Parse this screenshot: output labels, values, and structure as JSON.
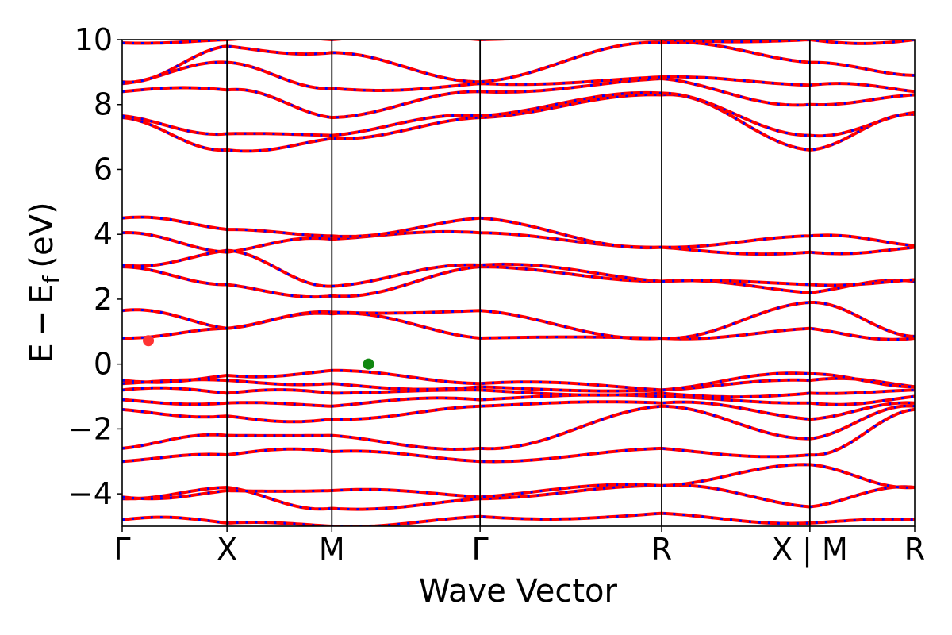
{
  "chart_data": {
    "type": "line",
    "title": "",
    "xlabel": "Wave Vector",
    "ylabel_parts": {
      "e": "E",
      "minus": "−",
      "ef": "E",
      "sub": "f",
      "unit": "(eV)"
    },
    "ylim": [
      -5,
      10
    ],
    "yticks": [
      10,
      8,
      6,
      4,
      2,
      0,
      -2,
      -4
    ],
    "ytick_labels": [
      "10",
      "8",
      "6",
      "4",
      "2",
      "0",
      "−2",
      "−4"
    ],
    "k_points": [
      {
        "label": "Γ",
        "x": 0.0
      },
      {
        "label": "X",
        "x": 0.5
      },
      {
        "label": "M",
        "x": 1.0
      },
      {
        "label": "Γ",
        "x": 1.707
      },
      {
        "label": "R",
        "x": 2.573
      },
      {
        "label": "X | M",
        "x": 3.28
      },
      {
        "label": "R",
        "x": 3.78
      }
    ],
    "xlim": [
      0,
      3.78
    ],
    "series_colors": {
      "spin_up": "#ff0000",
      "spin_down": "#0000ff"
    },
    "markers": [
      {
        "name": "cbm",
        "x": 0.125,
        "y": 0.72,
        "color": "#ff3333"
      },
      {
        "name": "vbm",
        "x": 1.175,
        "y": 0.0,
        "color": "#118811"
      }
    ],
    "bands": [
      {
        "x": [
          0,
          0.5,
          1.0,
          1.707,
          2.573,
          3.28,
          3.78
        ],
        "y": [
          -4.8,
          -4.9,
          -5.0,
          -4.7,
          -4.6,
          -4.9,
          -4.8
        ]
      },
      {
        "x": [
          0,
          0.5,
          1.0,
          1.707,
          2.573,
          3.28,
          3.78
        ],
        "y": [
          -4.15,
          -3.8,
          -4.45,
          -4.15,
          -3.75,
          -4.4,
          -3.8
        ]
      },
      {
        "x": [
          0,
          0.5,
          1.0,
          1.707,
          2.573,
          3.28,
          3.78
        ],
        "y": [
          -4.1,
          -3.9,
          -3.9,
          -4.1,
          -3.75,
          -3.1,
          -3.8
        ]
      },
      {
        "x": [
          0,
          0.5,
          1.0,
          1.707,
          2.573,
          3.28,
          3.78
        ],
        "y": [
          -3.0,
          -2.8,
          -2.7,
          -3.0,
          -2.6,
          -2.8,
          -1.4
        ]
      },
      {
        "x": [
          0,
          0.5,
          1.0,
          1.707,
          2.573,
          3.28,
          3.78
        ],
        "y": [
          -2.6,
          -2.2,
          -2.2,
          -2.6,
          -1.3,
          -2.3,
          -1.3
        ]
      },
      {
        "x": [
          0,
          0.5,
          1.0,
          1.707,
          2.573,
          3.28,
          3.78
        ],
        "y": [
          -1.4,
          -1.6,
          -1.7,
          -1.3,
          -1.2,
          -1.7,
          -1.2
        ]
      },
      {
        "x": [
          0,
          0.5,
          1.0,
          1.707,
          2.573,
          3.28,
          3.78
        ],
        "y": [
          -1.1,
          -1.2,
          -1.3,
          -1.1,
          -1.0,
          -1.2,
          -1.0
        ]
      },
      {
        "x": [
          0,
          0.5,
          1.0,
          1.707,
          2.573,
          3.28,
          3.78
        ],
        "y": [
          -0.8,
          -0.9,
          -0.9,
          -0.8,
          -0.9,
          -0.9,
          -0.8
        ]
      },
      {
        "x": [
          0,
          0.5,
          1.0,
          1.707,
          2.573,
          3.28,
          3.78
        ],
        "y": [
          -0.6,
          -0.5,
          -0.6,
          -0.7,
          -0.8,
          -0.5,
          -0.7
        ]
      },
      {
        "x": [
          0,
          0.5,
          1.0,
          1.707,
          2.573,
          3.28,
          3.78
        ],
        "y": [
          -0.5,
          -0.35,
          -0.2,
          -0.6,
          -0.8,
          -0.3,
          -0.7
        ]
      },
      {
        "x": [
          0,
          0.5,
          1.0,
          1.707,
          2.573,
          3.28,
          3.78
        ],
        "y": [
          0.8,
          1.1,
          1.55,
          0.8,
          0.8,
          1.1,
          0.8
        ]
      },
      {
        "x": [
          0,
          0.5,
          1.0,
          1.707,
          2.573,
          3.28,
          3.78
        ],
        "y": [
          1.65,
          1.1,
          1.6,
          1.65,
          0.8,
          1.9,
          0.85
        ]
      },
      {
        "x": [
          0,
          0.5,
          1.0,
          1.707,
          2.573,
          3.28,
          3.78
        ],
        "y": [
          3.0,
          2.45,
          2.1,
          3.0,
          2.55,
          2.2,
          2.55
        ]
      },
      {
        "x": [
          0,
          0.5,
          1.0,
          1.707,
          2.573,
          3.28,
          3.78
        ],
        "y": [
          3.05,
          3.5,
          2.4,
          3.05,
          2.55,
          2.45,
          2.6
        ]
      },
      {
        "x": [
          0,
          0.5,
          1.0,
          1.707,
          2.573,
          3.28,
          3.78
        ],
        "y": [
          4.05,
          3.45,
          3.85,
          4.05,
          3.6,
          3.45,
          3.6
        ]
      },
      {
        "x": [
          0,
          0.5,
          1.0,
          1.707,
          2.573,
          3.28,
          3.78
        ],
        "y": [
          4.5,
          4.15,
          3.95,
          4.5,
          3.6,
          3.95,
          3.65
        ]
      },
      {
        "x": [
          0,
          0.5,
          1.0,
          1.707,
          2.573,
          3.28,
          3.78
        ],
        "y": [
          7.6,
          6.6,
          6.95,
          7.6,
          8.3,
          6.6,
          7.7
        ]
      },
      {
        "x": [
          0,
          0.5,
          1.0,
          1.707,
          2.573,
          3.28,
          3.78
        ],
        "y": [
          7.65,
          7.1,
          7.05,
          7.65,
          8.35,
          7.05,
          7.75
        ]
      },
      {
        "x": [
          0,
          0.5,
          1.0,
          1.707,
          2.573,
          3.28,
          3.78
        ],
        "y": [
          8.4,
          8.45,
          7.6,
          8.4,
          8.8,
          8.0,
          8.3
        ]
      },
      {
        "x": [
          0,
          0.5,
          1.0,
          1.707,
          2.573,
          3.28,
          3.78
        ],
        "y": [
          8.65,
          9.3,
          8.5,
          8.65,
          8.85,
          8.6,
          8.4
        ]
      },
      {
        "x": [
          0,
          0.5,
          1.0,
          1.707,
          2.573,
          3.28,
          3.78
        ],
        "y": [
          8.7,
          9.8,
          9.6,
          8.7,
          9.9,
          9.3,
          8.9
        ]
      },
      {
        "x": [
          0,
          0.5,
          1.0,
          1.707,
          2.573,
          3.28,
          3.78
        ],
        "y": [
          9.9,
          10.0,
          10.0,
          10.0,
          10.0,
          10.0,
          10.0
        ]
      }
    ]
  }
}
